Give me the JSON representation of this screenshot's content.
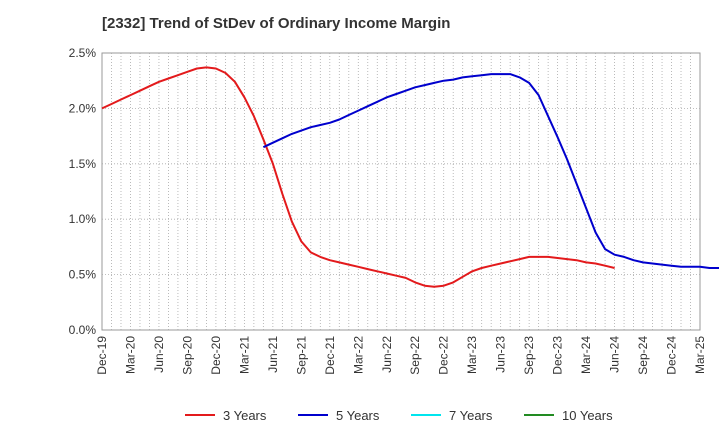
{
  "chart_data": {
    "type": "line",
    "title": "[2332]  Trend of StDev of Ordinary Income Margin",
    "xlabel": "",
    "ylabel": "",
    "x_tick_labels": [
      "Dec-19",
      "Mar-20",
      "Jun-20",
      "Sep-20",
      "Dec-20",
      "Mar-21",
      "Jun-21",
      "Sep-21",
      "Dec-21",
      "Mar-22",
      "Jun-22",
      "Sep-22",
      "Dec-22",
      "Mar-23",
      "Jun-23",
      "Sep-23",
      "Dec-23",
      "Mar-24",
      "Jun-24",
      "Sep-24",
      "Dec-24",
      "Mar-25"
    ],
    "y_tick_labels": [
      "0.0%",
      "0.5%",
      "1.0%",
      "1.5%",
      "2.0%",
      "2.5%"
    ],
    "ylim": [
      0,
      2.5
    ],
    "y_unit": "%",
    "grid": true,
    "legend_position": "bottom",
    "series": [
      {
        "name": "3 Years",
        "color": "#e31a1c",
        "values": [
          2.0,
          2.04,
          2.08,
          2.12,
          2.16,
          2.2,
          2.24,
          2.27,
          2.3,
          2.33,
          2.36,
          2.37,
          2.36,
          2.32,
          2.24,
          2.1,
          1.93,
          1.72,
          1.5,
          1.23,
          0.98,
          0.8,
          0.7,
          0.66,
          0.63,
          0.61,
          0.59,
          0.57,
          0.55,
          0.53,
          0.51,
          0.49,
          0.47,
          0.43,
          0.4,
          0.39,
          0.4,
          0.43,
          0.48,
          0.53,
          0.56,
          0.58,
          0.6,
          0.62,
          0.64,
          0.66,
          0.66,
          0.66,
          0.65,
          0.64,
          0.63,
          0.61,
          0.6,
          0.58,
          0.56
        ]
      },
      {
        "name": "5 Years",
        "color": "#0000cd",
        "values": [
          null,
          null,
          null,
          null,
          null,
          null,
          null,
          null,
          null,
          null,
          null,
          null,
          null,
          null,
          null,
          null,
          null,
          1.65,
          1.69,
          1.73,
          1.77,
          1.8,
          1.83,
          1.85,
          1.87,
          1.9,
          1.94,
          1.98,
          2.02,
          2.06,
          2.1,
          2.13,
          2.16,
          2.19,
          2.21,
          2.23,
          2.25,
          2.26,
          2.28,
          2.29,
          2.3,
          2.31,
          2.31,
          2.31,
          2.28,
          2.23,
          2.12,
          1.93,
          1.74,
          1.54,
          1.32,
          1.1,
          0.88,
          0.73,
          0.68,
          0.66,
          0.63,
          0.61,
          0.6,
          0.59,
          0.58,
          0.57,
          0.57,
          0.57,
          0.56,
          0.56
        ]
      },
      {
        "name": "7 Years",
        "color": "#00e5ee",
        "values": [
          null,
          null,
          null,
          null,
          null,
          null,
          null,
          null,
          null,
          null,
          null,
          null,
          null,
          null,
          null,
          null,
          null,
          null,
          null,
          null,
          null,
          null,
          null,
          null,
          null,
          null,
          null,
          null,
          null,
          null,
          null,
          null,
          null,
          null,
          null,
          null,
          null,
          null,
          null,
          null,
          null,
          null,
          null,
          null,
          null,
          null,
          null,
          null,
          null,
          null,
          null,
          null,
          null,
          null,
          null,
          null,
          null,
          null,
          null,
          null,
          null,
          null,
          null,
          null,
          null,
          null,
          null,
          null,
          null,
          null,
          null,
          null,
          null,
          null,
          null,
          null,
          null,
          null,
          null,
          null,
          null,
          null,
          null,
          null,
          null,
          null,
          null,
          null,
          null,
          null,
          null,
          null,
          null,
          null,
          null,
          null,
          null,
          null,
          null,
          null,
          null,
          null,
          null,
          null,
          null,
          null,
          null,
          null,
          null,
          null,
          null,
          null,
          null,
          null,
          null,
          null,
          null,
          null,
          null,
          null,
          null,
          null,
          null,
          null,
          null,
          null,
          null,
          null,
          null,
          null,
          null,
          null,
          null,
          null,
          null,
          null,
          null,
          null,
          null,
          null,
          null,
          null,
          null,
          null,
          null,
          null,
          null,
          null,
          null,
          null,
          null,
          null,
          null,
          null,
          null,
          null,
          null,
          null,
          null,
          null,
          null,
          null,
          null,
          null,
          null,
          null,
          null,
          null,
          null,
          null,
          null,
          null,
          null,
          null,
          null,
          null,
          null,
          null,
          null,
          null,
          null,
          null,
          null,
          null,
          null,
          null,
          null,
          null,
          null,
          null,
          null,
          null,
          null,
          null,
          null,
          null,
          null,
          null,
          null,
          null,
          null
        ]
      },
      {
        "name": "10 Years",
        "color": "#228b22",
        "values": []
      }
    ]
  }
}
